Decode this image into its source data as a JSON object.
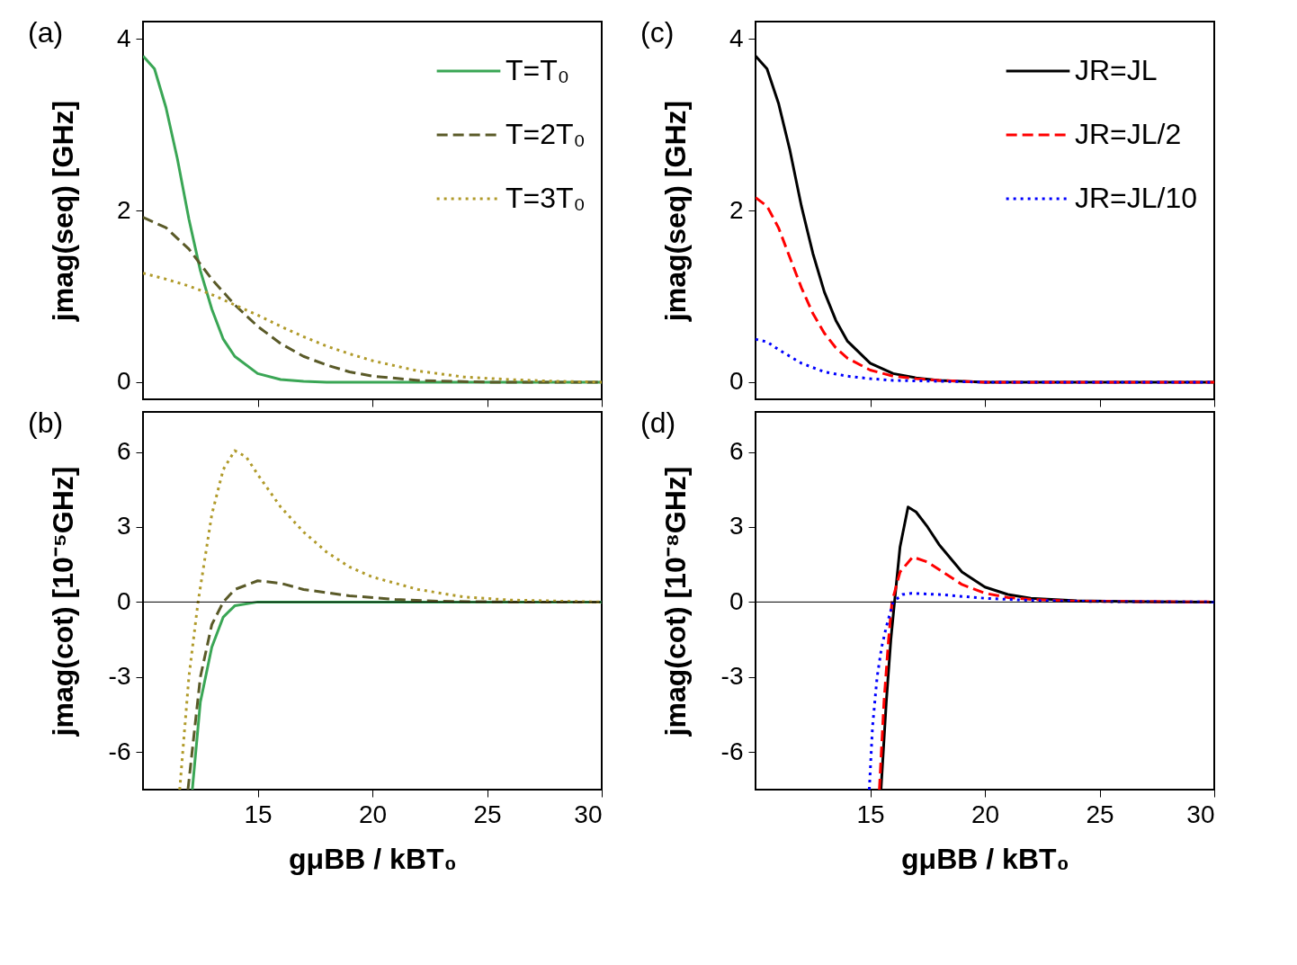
{
  "chart_data": [
    {
      "type": "line",
      "xlim": [
        10,
        30
      ],
      "xticks": [
        15,
        20,
        25,
        30
      ],
      "ylim": [
        -0.2,
        4.2
      ],
      "yticks": [
        0,
        2,
        4
      ],
      "ylabel": "jmag(seq) [GHz]",
      "tick_labels": "y",
      "legend": "top right",
      "marker": "none",
      "annotations": [
        "(a)"
      ],
      "series": [
        {
          "name": "T=T₀",
          "color": "#3aa655",
          "line_style": "solid",
          "x": [
            10,
            10.5,
            11,
            11.5,
            12,
            12.5,
            13,
            13.5,
            14,
            15,
            16,
            17,
            18,
            30
          ],
          "values": [
            3.8,
            3.65,
            3.2,
            2.6,
            1.9,
            1.3,
            0.85,
            0.5,
            0.3,
            0.1,
            0.03,
            0.01,
            0,
            0
          ]
        },
        {
          "name": "T=2T₀",
          "color": "#5a5a28",
          "line_style": "dashed",
          "x": [
            10,
            11,
            12,
            13,
            14,
            15,
            16,
            17,
            18,
            19,
            20,
            22,
            25,
            30
          ],
          "values": [
            1.92,
            1.8,
            1.55,
            1.2,
            0.9,
            0.65,
            0.45,
            0.3,
            0.2,
            0.12,
            0.07,
            0.02,
            0,
            0
          ]
        },
        {
          "name": "T=3T₀",
          "color": "#b09a2a",
          "line_style": "dotted",
          "x": [
            10,
            11,
            12,
            13,
            14,
            15,
            16,
            17,
            18,
            19,
            20,
            22,
            24,
            26,
            28,
            30
          ],
          "values": [
            1.27,
            1.2,
            1.12,
            1.02,
            0.9,
            0.78,
            0.65,
            0.53,
            0.42,
            0.33,
            0.25,
            0.13,
            0.06,
            0.03,
            0.01,
            0
          ]
        }
      ]
    },
    {
      "type": "line",
      "xlim": [
        10,
        30
      ],
      "xticks": [
        15,
        20,
        25,
        30
      ],
      "ylim": [
        -0.2,
        4.2
      ],
      "yticks": [
        0,
        2,
        4
      ],
      "ylabel": "jmag(seq) [GHz]",
      "tick_labels": "y",
      "legend": "top right",
      "marker": "none",
      "annotations": [
        "(c)"
      ],
      "series": [
        {
          "name": "JR=JL",
          "color": "#000000",
          "line_style": "solid",
          "x": [
            10,
            10.5,
            11,
            11.5,
            12,
            12.5,
            13,
            13.5,
            14,
            15,
            16,
            17,
            18,
            20,
            30
          ],
          "values": [
            3.8,
            3.65,
            3.25,
            2.7,
            2.05,
            1.5,
            1.05,
            0.72,
            0.48,
            0.22,
            0.1,
            0.05,
            0.02,
            0,
            0
          ]
        },
        {
          "name": "JR=JL/2",
          "color": "#ff0000",
          "line_style": "dashed",
          "x": [
            10,
            10.5,
            11,
            11.5,
            12,
            12.5,
            13,
            13.5,
            14,
            15,
            16,
            17,
            18,
            20,
            30
          ],
          "values": [
            2.15,
            2.05,
            1.8,
            1.45,
            1.1,
            0.8,
            0.57,
            0.4,
            0.28,
            0.14,
            0.07,
            0.04,
            0.02,
            0,
            0
          ]
        },
        {
          "name": "JR=JL/10",
          "color": "#0000ff",
          "line_style": "dotted",
          "x": [
            10,
            10.5,
            11,
            11.5,
            12,
            13,
            14,
            15,
            16,
            18,
            20,
            30
          ],
          "values": [
            0.5,
            0.47,
            0.38,
            0.3,
            0.22,
            0.12,
            0.07,
            0.04,
            0.02,
            0.01,
            0,
            0
          ]
        }
      ]
    },
    {
      "type": "line",
      "xlim": [
        10,
        30
      ],
      "xticks": [
        15,
        20,
        25,
        30
      ],
      "ylim": [
        -7.5,
        7.6
      ],
      "yticks": [
        -6,
        -3,
        0,
        3,
        6
      ],
      "xlabel": "gμBB / kBT₀",
      "ylabel": "jmag(cot) [10⁻⁵GHz]",
      "marker": "none",
      "annotations": [
        "(b)"
      ],
      "ref_lines": [
        {
          "axis": "y",
          "value": 0,
          "color": "#000000"
        }
      ],
      "series": [
        {
          "color": "#3aa655",
          "line_style": "solid",
          "x": [
            12.15,
            12.5,
            13,
            13.5,
            14,
            15,
            30
          ],
          "values": [
            -7.5,
            -4,
            -1.8,
            -0.6,
            -0.15,
            0,
            0
          ]
        },
        {
          "color": "#5a5a28",
          "line_style": "dashed",
          "x": [
            11.96,
            12.5,
            13,
            13.5,
            14,
            15,
            16,
            17,
            19,
            21,
            23,
            26,
            30
          ],
          "values": [
            -7.5,
            -3,
            -0.9,
            0,
            0.5,
            0.85,
            0.75,
            0.5,
            0.25,
            0.1,
            0.03,
            0,
            0
          ]
        },
        {
          "color": "#b09a2a",
          "line_style": "dotted",
          "x": [
            11.6,
            12,
            12.4,
            13,
            13.5,
            14,
            14.5,
            15,
            16,
            17,
            18,
            19,
            20,
            22,
            24,
            26,
            30
          ],
          "values": [
            -7.5,
            -3,
            0,
            3.5,
            5.3,
            6.05,
            5.8,
            5.1,
            3.8,
            2.8,
            2.0,
            1.4,
            1.0,
            0.5,
            0.2,
            0.08,
            0
          ]
        }
      ]
    },
    {
      "type": "line",
      "xlim": [
        10,
        30
      ],
      "xticks": [
        15,
        20,
        25,
        30
      ],
      "ylim": [
        -7.5,
        7.6
      ],
      "yticks": [
        -6,
        -3,
        0,
        3,
        6
      ],
      "xlabel": "gμBB / kBT₀",
      "ylabel": "jmag(cot) [10⁻⁸GHz]",
      "marker": "none",
      "annotations": [
        "(d)"
      ],
      "ref_lines": [
        {
          "axis": "y",
          "value": 0,
          "color": "#000000"
        }
      ],
      "series": [
        {
          "color": "#000000",
          "line_style": "solid",
          "x": [
            15.47,
            15.7,
            15.9,
            16.06,
            16.3,
            16.65,
            17,
            17.5,
            18,
            19,
            20,
            21,
            22,
            24,
            26,
            30
          ],
          "values": [
            -7.5,
            -4,
            -1.5,
            0,
            2.2,
            3.8,
            3.6,
            3.0,
            2.3,
            1.2,
            0.6,
            0.3,
            0.15,
            0.05,
            0.02,
            0
          ]
        },
        {
          "color": "#ff0000",
          "line_style": "dashed",
          "x": [
            15.4,
            15.6,
            15.8,
            15.95,
            16.3,
            16.85,
            17.5,
            18,
            19,
            20,
            21,
            22,
            24,
            30
          ],
          "values": [
            -7.5,
            -4,
            -1.5,
            0,
            1.2,
            1.8,
            1.6,
            1.3,
            0.7,
            0.35,
            0.18,
            0.1,
            0.03,
            0
          ]
        },
        {
          "color": "#0000ff",
          "line_style": "dotted",
          "x": [
            14.96,
            15.1,
            15.3,
            15.5,
            15.7,
            16.0,
            16.4,
            16.8,
            18,
            20,
            22,
            25,
            30
          ],
          "values": [
            -7.5,
            -5,
            -3,
            -1.8,
            -1.0,
            0,
            0.3,
            0.35,
            0.3,
            0.15,
            0.06,
            0.02,
            0
          ]
        }
      ]
    }
  ]
}
